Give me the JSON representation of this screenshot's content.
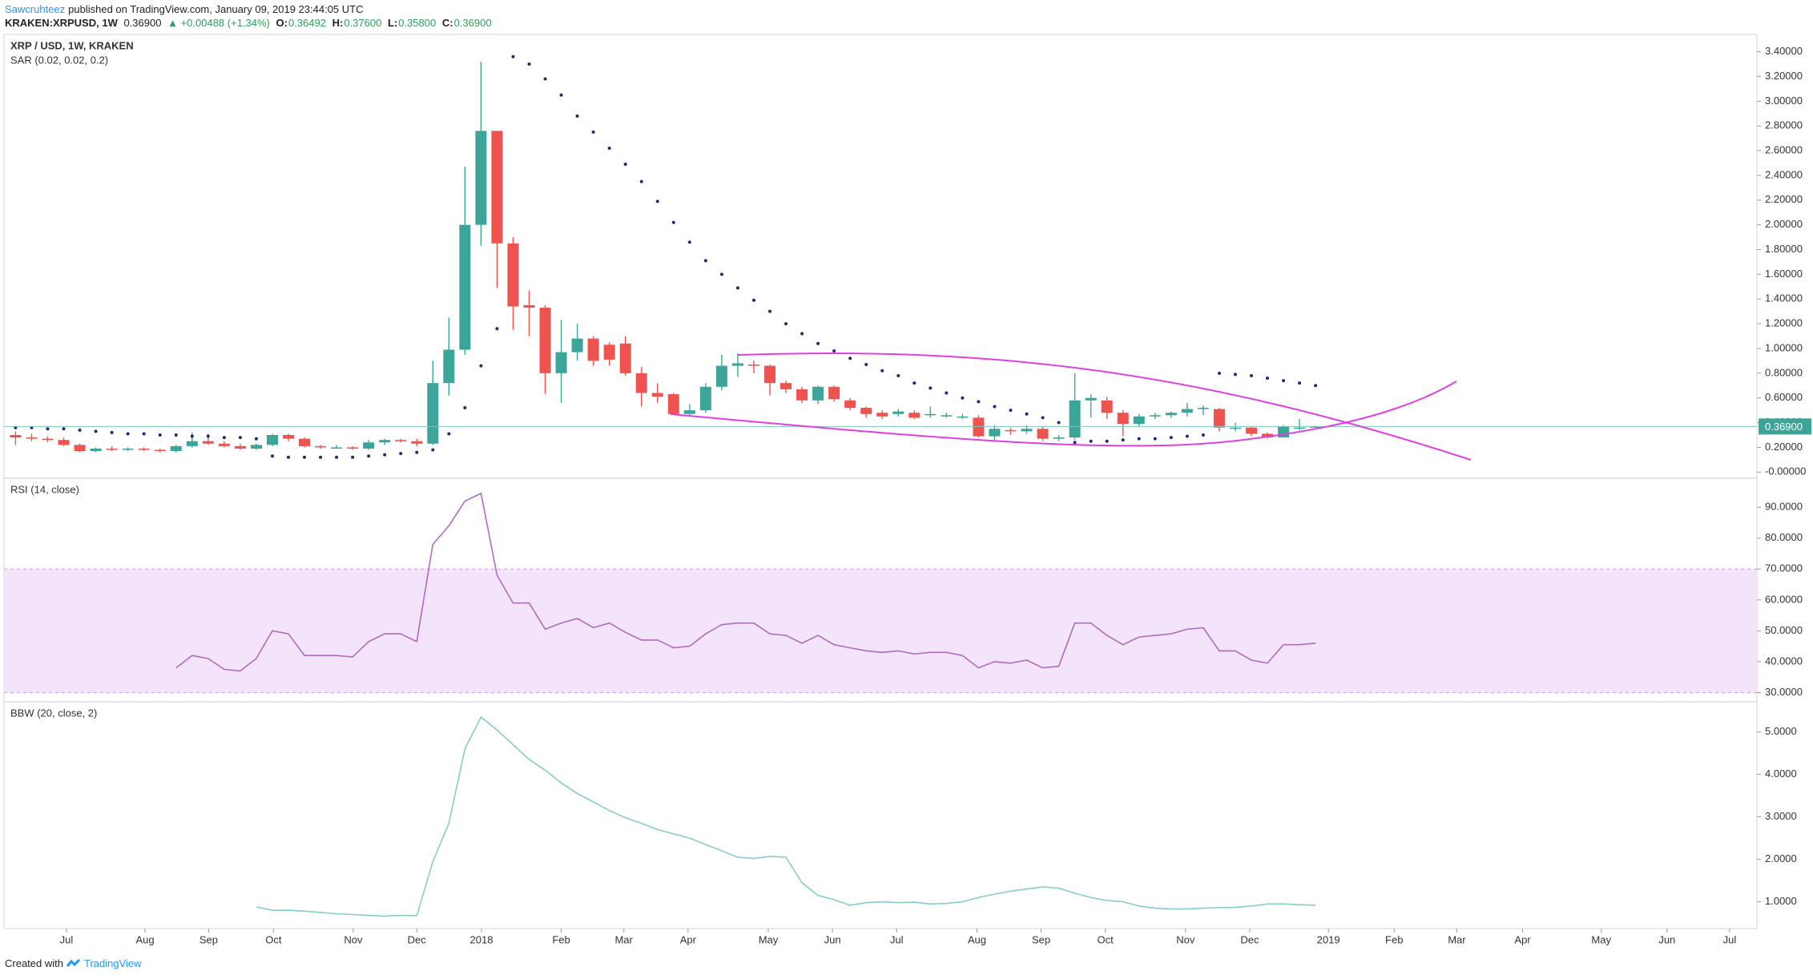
{
  "header": {
    "author": "Sawcruhteez",
    "published": "published on TradingView.com, January 09, 2019 23:44:05 UTC",
    "symbol": "KRAKEN:XRPUSD, 1W",
    "price": "0.36900",
    "change": "▲ +0.00488 (+1.34%)",
    "ohlc": [
      {
        "label": "O:",
        "value": "0.36492"
      },
      {
        "label": "H:",
        "value": "0.37600"
      },
      {
        "label": "L:",
        "value": "0.35800"
      },
      {
        "label": "C:",
        "value": "0.36900"
      }
    ]
  },
  "footer": {
    "text": "Created with",
    "brand": "TradingView"
  },
  "chart_data": [
    {
      "type": "candlestick",
      "title": "XRP / USD, 1W, KRAKEN",
      "up_color": "#3aa598",
      "down_color": "#ef5350",
      "open": [
        0.3,
        0.28,
        0.27,
        0.26,
        0.22,
        0.17,
        0.19,
        0.18,
        0.19,
        0.18,
        0.17,
        0.21,
        0.25,
        0.23,
        0.21,
        0.19,
        0.22,
        0.3,
        0.27,
        0.21,
        0.2,
        0.2,
        0.19,
        0.24,
        0.26,
        0.25,
        0.23,
        0.72,
        0.99,
        2.0,
        2.76,
        1.85,
        1.35,
        1.33,
        0.8,
        0.97,
        1.08,
        1.03,
        1.04,
        0.8,
        0.64,
        0.63,
        0.47,
        0.5,
        0.69,
        0.86,
        0.87,
        0.86,
        0.72,
        0.67,
        0.58,
        0.69,
        0.58,
        0.52,
        0.48,
        0.47,
        0.48,
        0.46,
        0.46,
        0.45,
        0.44,
        0.29,
        0.34,
        0.33,
        0.35,
        0.27,
        0.28,
        0.58,
        0.58,
        0.48,
        0.39,
        0.45,
        0.46,
        0.48,
        0.51,
        0.51,
        0.36,
        0.36,
        0.31,
        0.28,
        0.36,
        0.36492
      ],
      "high": [
        0.33,
        0.31,
        0.29,
        0.28,
        0.23,
        0.2,
        0.21,
        0.2,
        0.2,
        0.19,
        0.22,
        0.32,
        0.31,
        0.25,
        0.23,
        0.23,
        0.31,
        0.31,
        0.28,
        0.22,
        0.22,
        0.21,
        0.26,
        0.27,
        0.27,
        0.27,
        0.9,
        1.25,
        2.47,
        3.32,
        2.76,
        1.9,
        1.47,
        1.35,
        1.23,
        1.2,
        1.1,
        1.05,
        1.1,
        0.85,
        0.72,
        0.64,
        0.55,
        0.72,
        0.95,
        0.96,
        0.9,
        0.87,
        0.74,
        0.69,
        0.7,
        0.7,
        0.6,
        0.53,
        0.5,
        0.51,
        0.5,
        0.53,
        0.48,
        0.47,
        0.46,
        0.38,
        0.36,
        0.38,
        0.37,
        0.3,
        0.8,
        0.63,
        0.61,
        0.5,
        0.47,
        0.48,
        0.49,
        0.56,
        0.54,
        0.52,
        0.4,
        0.37,
        0.32,
        0.38,
        0.43,
        0.376
      ],
      "low": [
        0.22,
        0.25,
        0.24,
        0.21,
        0.16,
        0.16,
        0.17,
        0.17,
        0.17,
        0.16,
        0.16,
        0.2,
        0.22,
        0.2,
        0.18,
        0.18,
        0.21,
        0.25,
        0.2,
        0.19,
        0.19,
        0.18,
        0.18,
        0.22,
        0.24,
        0.21,
        0.22,
        0.62,
        0.95,
        1.83,
        1.49,
        1.15,
        1.1,
        0.63,
        0.56,
        0.9,
        0.86,
        0.86,
        0.78,
        0.53,
        0.56,
        0.46,
        0.46,
        0.48,
        0.66,
        0.77,
        0.8,
        0.62,
        0.64,
        0.56,
        0.55,
        0.57,
        0.5,
        0.44,
        0.43,
        0.45,
        0.43,
        0.44,
        0.44,
        0.43,
        0.28,
        0.25,
        0.3,
        0.31,
        0.25,
        0.25,
        0.26,
        0.44,
        0.43,
        0.29,
        0.37,
        0.43,
        0.44,
        0.45,
        0.46,
        0.33,
        0.33,
        0.29,
        0.27,
        0.28,
        0.34,
        0.358
      ],
      "close": [
        0.28,
        0.27,
        0.26,
        0.22,
        0.17,
        0.19,
        0.18,
        0.19,
        0.18,
        0.17,
        0.21,
        0.25,
        0.23,
        0.21,
        0.19,
        0.22,
        0.3,
        0.27,
        0.21,
        0.2,
        0.2,
        0.19,
        0.24,
        0.26,
        0.25,
        0.23,
        0.72,
        0.99,
        2.0,
        2.76,
        1.85,
        1.34,
        1.33,
        0.8,
        0.97,
        1.08,
        0.9,
        0.91,
        0.8,
        0.64,
        0.61,
        0.47,
        0.5,
        0.69,
        0.86,
        0.88,
        0.86,
        0.72,
        0.67,
        0.58,
        0.69,
        0.59,
        0.52,
        0.47,
        0.45,
        0.49,
        0.44,
        0.47,
        0.46,
        0.45,
        0.29,
        0.35,
        0.33,
        0.35,
        0.27,
        0.28,
        0.58,
        0.6,
        0.48,
        0.39,
        0.45,
        0.46,
        0.48,
        0.51,
        0.52,
        0.36,
        0.36,
        0.31,
        0.28,
        0.37,
        0.36,
        0.369
      ],
      "series": [
        {
          "name": "SAR (0.02, 0.02, 0.2)",
          "color": "#1f2a7a",
          "values": [
            0.36,
            0.36,
            0.35,
            0.35,
            0.34,
            0.33,
            0.32,
            0.31,
            0.31,
            0.3,
            0.3,
            0.29,
            0.29,
            0.28,
            0.28,
            0.27,
            0.13,
            0.12,
            0.12,
            0.12,
            0.12,
            0.12,
            0.13,
            0.14,
            0.15,
            0.16,
            0.18,
            0.31,
            0.52,
            0.86,
            1.16,
            3.36,
            3.3,
            3.18,
            3.05,
            2.88,
            2.75,
            2.62,
            2.49,
            2.35,
            2.19,
            2.02,
            1.86,
            1.71,
            1.6,
            1.49,
            1.39,
            1.3,
            1.2,
            1.12,
            1.04,
            0.98,
            0.92,
            0.87,
            0.82,
            0.78,
            0.72,
            0.68,
            0.64,
            0.6,
            0.57,
            0.53,
            0.5,
            0.47,
            0.44,
            0.4,
            0.24,
            0.25,
            0.25,
            0.26,
            0.27,
            0.27,
            0.28,
            0.29,
            0.3,
            0.8,
            0.79,
            0.78,
            0.76,
            0.74,
            0.72,
            0.7
          ]
        }
      ],
      "last_price": {
        "value": 0.369,
        "label": "0.36900"
      },
      "ylim": [
        -0.05,
        3.54
      ],
      "yticks": [
        {
          "value": 0,
          "label": "-0.00000"
        },
        {
          "value": 0.2,
          "label": "0.20000"
        },
        {
          "value": 0.4,
          "label": "0.40000"
        },
        {
          "value": 0.6,
          "label": "0.60000"
        },
        {
          "value": 0.8,
          "label": "0.80000"
        },
        {
          "value": 1,
          "label": "1.00000"
        },
        {
          "value": 1.2,
          "label": "1.20000"
        },
        {
          "value": 1.4,
          "label": "1.40000"
        },
        {
          "value": 1.6,
          "label": "1.60000"
        },
        {
          "value": 1.8,
          "label": "1.80000"
        },
        {
          "value": 2,
          "label": "2.00000"
        },
        {
          "value": 2.2,
          "label": "2.20000"
        },
        {
          "value": 2.4,
          "label": "2.40000"
        },
        {
          "value": 2.6,
          "label": "2.60000"
        },
        {
          "value": 2.8,
          "label": "2.80000"
        },
        {
          "value": 3,
          "label": "3.00000"
        },
        {
          "value": 3.2,
          "label": "3.20000"
        },
        {
          "value": 3.4,
          "label": "3.40000"
        }
      ]
    },
    {
      "type": "line",
      "title": "RSI (14, close)",
      "color": "#b06bc0",
      "band": [
        30,
        70
      ],
      "band_color": "#f3e4fc",
      "values": [
        null,
        null,
        null,
        null,
        null,
        null,
        null,
        null,
        null,
        null,
        38,
        42,
        41,
        37.5,
        37,
        41,
        50,
        49,
        42,
        42,
        42,
        41.5,
        46.5,
        49,
        49,
        46.5,
        78,
        84,
        92,
        94.5,
        68,
        59,
        59,
        50.5,
        52.5,
        54,
        51,
        52.5,
        49.5,
        47,
        47,
        44.5,
        45,
        49,
        52,
        52.5,
        52.5,
        49,
        48.5,
        46,
        48.5,
        45.5,
        44.5,
        43.5,
        43,
        43.5,
        42.5,
        43,
        43,
        42,
        38,
        40,
        39.5,
        40.5,
        38,
        38.5,
        52.5,
        52.5,
        48.5,
        45.5,
        48,
        48.5,
        49,
        50.5,
        51,
        43.5,
        43.5,
        40.5,
        39.5,
        45.5,
        45.5,
        46
      ],
      "ylim": [
        27,
        99.4
      ],
      "yticks": [
        {
          "value": 30,
          "label": "30.0000"
        },
        {
          "value": 40,
          "label": "40.0000"
        },
        {
          "value": 50,
          "label": "50.0000"
        },
        {
          "value": 60,
          "label": "60.0000"
        },
        {
          "value": 70,
          "label": "70.0000"
        },
        {
          "value": 80,
          "label": "80.0000"
        },
        {
          "value": 90,
          "label": "90.0000"
        }
      ]
    },
    {
      "type": "line",
      "title": "BBW (20, close, 2)",
      "color": "#86cdc6",
      "values": [
        null,
        null,
        null,
        null,
        null,
        null,
        null,
        null,
        null,
        null,
        null,
        null,
        null,
        null,
        null,
        0.88,
        0.8,
        0.8,
        0.78,
        0.75,
        0.72,
        0.7,
        0.68,
        0.66,
        0.68,
        0.67,
        1.95,
        2.85,
        4.6,
        5.35,
        5.05,
        4.7,
        4.35,
        4.1,
        3.8,
        3.55,
        3.35,
        3.15,
        2.98,
        2.85,
        2.7,
        2.6,
        2.5,
        2.35,
        2.2,
        2.05,
        2.02,
        2.07,
        2.05,
        1.45,
        1.15,
        1.05,
        0.92,
        0.98,
        1.0,
        0.98,
        0.99,
        0.95,
        0.96,
        1.0,
        1.1,
        1.18,
        1.25,
        1.3,
        1.35,
        1.32,
        1.2,
        1.1,
        1.03,
        1.0,
        0.9,
        0.85,
        0.83,
        0.83,
        0.85,
        0.86,
        0.87,
        0.9,
        0.95,
        0.95,
        0.93,
        0.92
      ],
      "ylim": [
        0.37,
        5.71
      ],
      "yticks": [
        {
          "value": 1,
          "label": "1.0000"
        },
        {
          "value": 2,
          "label": "2.0000"
        },
        {
          "value": 3,
          "label": "3.0000"
        },
        {
          "value": 4,
          "label": "4.0000"
        },
        {
          "value": 5,
          "label": "5.0000"
        }
      ],
      "xlim": [
        -0.72,
        108.5
      ],
      "xticks": [
        {
          "value": 3.17,
          "label": "Jul"
        },
        {
          "value": 8.07,
          "label": "Aug"
        },
        {
          "value": 12.03,
          "label": "Sep"
        },
        {
          "value": 16.07,
          "label": "Oct"
        },
        {
          "value": 21.04,
          "label": "Nov"
        },
        {
          "value": 25.0,
          "label": "Dec"
        },
        {
          "value": 29.03,
          "label": "2018"
        },
        {
          "value": 34.0,
          "label": "Feb"
        },
        {
          "value": 37.9,
          "label": "Mar"
        },
        {
          "value": 41.9,
          "label": "Apr"
        },
        {
          "value": 46.9,
          "label": "May"
        },
        {
          "value": 50.9,
          "label": "Jun"
        },
        {
          "value": 54.9,
          "label": "Jul"
        },
        {
          "value": 59.9,
          "label": "Aug"
        },
        {
          "value": 63.9,
          "label": "Sep"
        },
        {
          "value": 67.9,
          "label": "Oct"
        },
        {
          "value": 72.9,
          "label": "Nov"
        },
        {
          "value": 76.9,
          "label": "Dec"
        },
        {
          "value": 81.8,
          "label": "2019"
        },
        {
          "value": 85.9,
          "label": "Feb"
        },
        {
          "value": 89.8,
          "label": "Mar"
        },
        {
          "value": 93.9,
          "label": "Apr"
        },
        {
          "value": 98.8,
          "label": "May"
        },
        {
          "value": 102.9,
          "label": "Jun"
        },
        {
          "value": 106.8,
          "label": "Jul"
        }
      ]
    }
  ]
}
